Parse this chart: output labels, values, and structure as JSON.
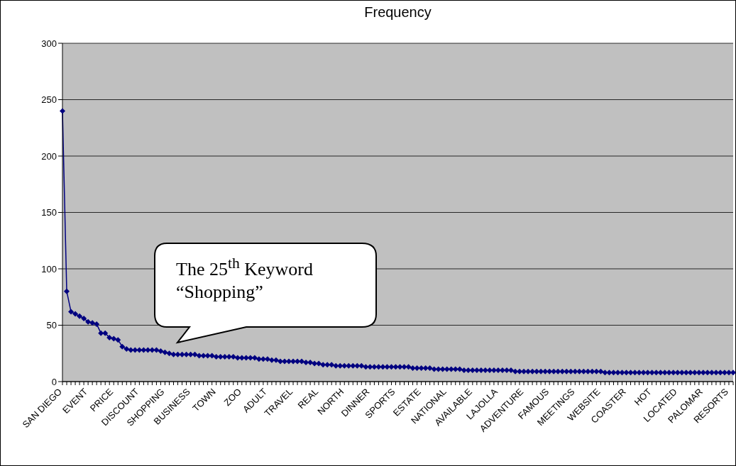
{
  "chart_data": {
    "type": "line",
    "title": "Frequency",
    "categories": [
      "SAN DIEGO",
      null,
      null,
      null,
      null,
      null,
      "EVENT",
      null,
      null,
      null,
      null,
      null,
      "PRICE",
      null,
      null,
      null,
      null,
      null,
      "DISCOUNT",
      null,
      null,
      null,
      null,
      null,
      "SHOPPING",
      null,
      null,
      null,
      null,
      null,
      "BUSINESS",
      null,
      null,
      null,
      null,
      null,
      "TOWN",
      null,
      null,
      null,
      null,
      null,
      "ZOO",
      null,
      null,
      null,
      null,
      null,
      "ADULT",
      null,
      null,
      null,
      null,
      null,
      "TRAVEL",
      null,
      null,
      null,
      null,
      null,
      "REAL",
      null,
      null,
      null,
      null,
      null,
      "NORTH",
      null,
      null,
      null,
      null,
      null,
      "DINNER",
      null,
      null,
      null,
      null,
      null,
      "SPORTS",
      null,
      null,
      null,
      null,
      null,
      "ESTATE",
      null,
      null,
      null,
      null,
      null,
      "NATIONAL",
      null,
      null,
      null,
      null,
      null,
      "AVAILABLE",
      null,
      null,
      null,
      null,
      null,
      "LAJOLLA",
      null,
      null,
      null,
      null,
      null,
      "ADVENTURE",
      null,
      null,
      null,
      null,
      null,
      "FAMOUS",
      null,
      null,
      null,
      null,
      null,
      "MEETINGS",
      null,
      null,
      null,
      null,
      null,
      "WEBSITE",
      null,
      null,
      null,
      null,
      null,
      "COASTER",
      null,
      null,
      null,
      null,
      null,
      "HOT",
      null,
      null,
      null,
      null,
      null,
      "LOCATED",
      null,
      null,
      null,
      null,
      null,
      "PALOMAR",
      null,
      null,
      null,
      null,
      null,
      "RESORTS",
      null
    ],
    "series": [
      {
        "color": "#000080",
        "values": [
          240,
          80,
          62,
          60,
          58,
          56,
          53,
          52,
          51,
          43,
          43,
          39,
          38,
          37,
          31,
          29,
          28,
          28,
          28,
          28,
          28,
          28,
          28,
          27,
          26,
          25,
          24,
          24,
          24,
          24,
          24,
          24,
          23,
          23,
          23,
          23,
          22,
          22,
          22,
          22,
          22,
          21,
          21,
          21,
          21,
          21,
          20,
          20,
          20,
          19,
          19,
          18,
          18,
          18,
          18,
          18,
          18,
          17,
          17,
          16,
          16,
          15,
          15,
          15,
          14,
          14,
          14,
          14,
          14,
          14,
          14,
          13,
          13,
          13,
          13,
          13,
          13,
          13,
          13,
          13,
          13,
          13,
          12,
          12,
          12,
          12,
          12,
          11,
          11,
          11,
          11,
          11,
          11,
          11,
          10,
          10,
          10,
          10,
          10,
          10,
          10,
          10,
          10,
          10,
          10,
          10,
          9,
          9,
          9,
          9,
          9,
          9,
          9,
          9,
          9,
          9,
          9,
          9,
          9,
          9,
          9,
          9,
          9,
          9,
          9,
          9,
          9,
          8,
          8,
          8,
          8,
          8,
          8,
          8,
          8,
          8,
          8,
          8,
          8,
          8,
          8,
          8,
          8,
          8,
          8,
          8,
          8,
          8,
          8,
          8,
          8,
          8,
          8,
          8,
          8,
          8,
          8,
          8
        ]
      }
    ],
    "ylim": [
      0,
      300
    ],
    "yticks": [
      0,
      50,
      100,
      150,
      200,
      250,
      300
    ],
    "grid": "y",
    "marker": "diamond",
    "line_style": "solid",
    "legend": false,
    "annotations": [
      "The 25$^{th}$ Keyword\n“Shopping”"
    ]
  }
}
